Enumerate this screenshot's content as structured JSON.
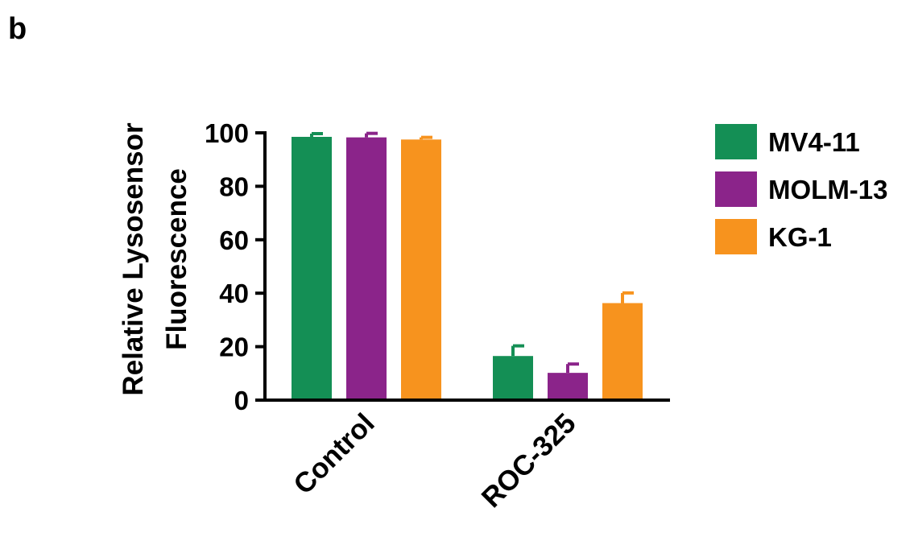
{
  "panel_label": "b",
  "chart_data": {
    "type": "bar",
    "categories": [
      "Control",
      "ROC-325"
    ],
    "series": [
      {
        "name": "MV4-11",
        "color": "#148F55",
        "values": [
          98.5,
          16.5
        ],
        "errors": [
          1.2,
          3.8
        ]
      },
      {
        "name": "MOLM-13",
        "color": "#8B248A",
        "values": [
          98.3,
          10.2
        ],
        "errors": [
          1.5,
          3.3
        ]
      },
      {
        "name": "KG-1",
        "color": "#F7931E",
        "values": [
          97.5,
          36.3
        ],
        "errors": [
          0.8,
          3.8
        ]
      }
    ],
    "ylabel_lines": [
      "Relative Lysosensor",
      "Fluorescence"
    ],
    "ylim": [
      0,
      100
    ],
    "yticks": [
      0,
      20,
      40,
      60,
      80,
      100
    ],
    "legend_position": "right",
    "grid": false
  }
}
